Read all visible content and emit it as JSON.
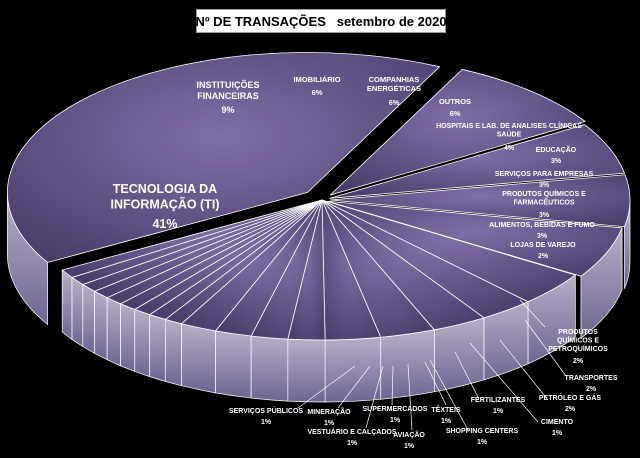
{
  "chart_data": {
    "type": "pie",
    "title": "Nº DE TRANSAÇÕES",
    "subtitle": "setembro de 2020",
    "slices": [
      {
        "label": "TECNOLOGIA DA INFORMAÇÃO (TI)",
        "value": 41,
        "value_label": "41%"
      },
      {
        "label": "INSTITUIÇÕES FINANCEIRAS",
        "value": 9,
        "value_label": "9%"
      },
      {
        "label": "IMOBILIÁRIO",
        "value": 6,
        "value_label": "6%"
      },
      {
        "label": "COMPANHIAS ENERGÉTICAS",
        "value": 6,
        "value_label": "6%"
      },
      {
        "label": "OUTROS",
        "value": 6,
        "value_label": "6%"
      },
      {
        "label": "HOSPITAIS E LAB. DE ANALISES CLÍNICAS SAÚDE",
        "value": 4,
        "value_label": "4%"
      },
      {
        "label": "EDUCAÇÃO",
        "value": 3,
        "value_label": "3%"
      },
      {
        "label": "SERVIÇOS PARA EMPRESAS",
        "value": 3,
        "value_label": "3%"
      },
      {
        "label": "PRODUTOS QUÍMICOS E FARMACÊUTICOS",
        "value": 3,
        "value_label": "3%"
      },
      {
        "label": "ALIMENTOS, BEBIDAS E FUMO",
        "value": 3,
        "value_label": "3%"
      },
      {
        "label": "LOJAS DE VAREJO",
        "value": 2,
        "value_label": "2%"
      },
      {
        "label": "PRODUTOS QUÍMICOS E PETROQUÍMICOS",
        "value": 2,
        "value_label": "2%"
      },
      {
        "label": "TRANSPORTES",
        "value": 2,
        "value_label": "2%"
      },
      {
        "label": "PETRÓLEO E GÁS",
        "value": 2,
        "value_label": "2%"
      },
      {
        "label": "CIMENTO",
        "value": 1,
        "value_label": "1%"
      },
      {
        "label": "FERTILIZANTES",
        "value": 1,
        "value_label": "1%"
      },
      {
        "label": "SHOPPING CENTERS",
        "value": 1,
        "value_label": "1%"
      },
      {
        "label": "TÊXTEIS",
        "value": 1,
        "value_label": "1%"
      },
      {
        "label": "AVIAÇÃO",
        "value": 1,
        "value_label": "1%"
      },
      {
        "label": "SUPERMERCADOS",
        "value": 1,
        "value_label": "1%"
      },
      {
        "label": "VESTUÁRIO E CALÇADOS",
        "value": 1,
        "value_label": "1%"
      },
      {
        "label": "MINERAÇÃO",
        "value": 1,
        "value_label": "1%"
      },
      {
        "label": "SERVIÇOS PÚBLICOS",
        "value": 1,
        "value_label": "1%"
      }
    ],
    "colors": {
      "top": "#4a3d6a",
      "top_light": "#7f6fa8",
      "side": "#b7aec9",
      "side_dark": "#6f6690",
      "edge": "#ffffff",
      "background": "#000000",
      "label": "#ffffff"
    },
    "style": "3d-exploded-pie",
    "legend": "none"
  }
}
